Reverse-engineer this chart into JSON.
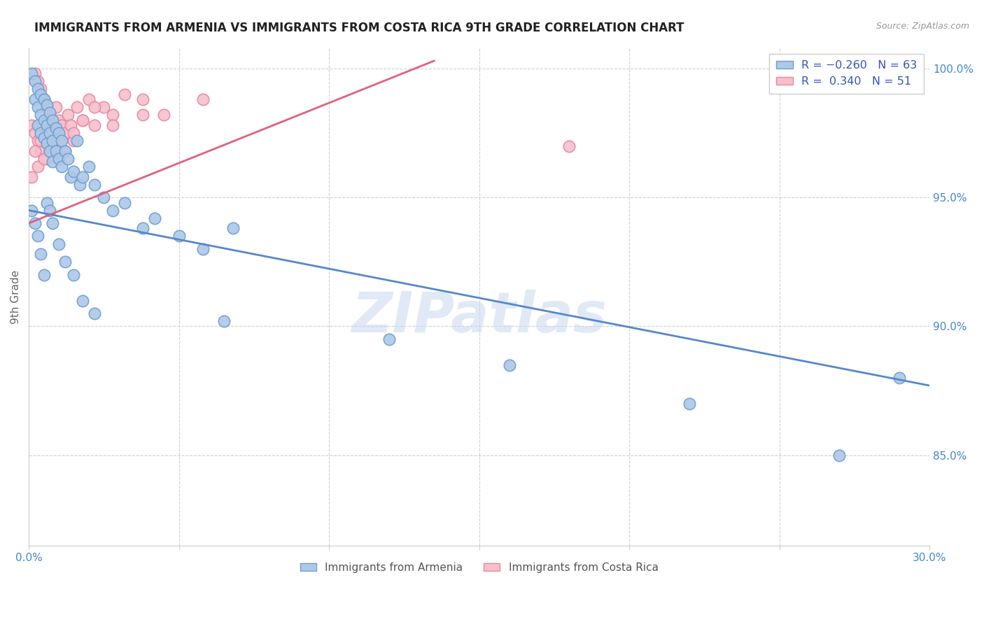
{
  "title": "IMMIGRANTS FROM ARMENIA VS IMMIGRANTS FROM COSTA RICA 9TH GRADE CORRELATION CHART",
  "source": "Source: ZipAtlas.com",
  "ylabel": "9th Grade",
  "ylabel_right_labels": [
    "100.0%",
    "95.0%",
    "90.0%",
    "85.0%"
  ],
  "ylabel_right_values": [
    1.0,
    0.95,
    0.9,
    0.85
  ],
  "xmin": 0.0,
  "xmax": 0.3,
  "ymin": 0.815,
  "ymax": 1.008,
  "armenia_color": "#adc8e8",
  "armenia_edge": "#6fa0d0",
  "costa_rica_color": "#f5c0cc",
  "costa_rica_edge": "#e888a0",
  "armenia_N": 63,
  "costa_rica_N": 51,
  "trend_armenia_color": "#5588cc",
  "trend_costa_rica_color": "#e06080",
  "watermark": "ZIPatlas",
  "legend_label_armenia_bottom": "Immigrants from Armenia",
  "legend_label_costa_rica_bottom": "Immigrants from Costa Rica",
  "arm_trend_x": [
    0.0,
    0.3
  ],
  "arm_trend_y": [
    0.945,
    0.877
  ],
  "cr_trend_x": [
    0.0,
    0.135
  ],
  "cr_trend_y": [
    0.94,
    1.003
  ],
  "arm_x": [
    0.001,
    0.002,
    0.002,
    0.003,
    0.003,
    0.003,
    0.004,
    0.004,
    0.004,
    0.005,
    0.005,
    0.005,
    0.006,
    0.006,
    0.006,
    0.007,
    0.007,
    0.007,
    0.008,
    0.008,
    0.008,
    0.009,
    0.009,
    0.01,
    0.01,
    0.011,
    0.011,
    0.012,
    0.013,
    0.014,
    0.015,
    0.016,
    0.017,
    0.018,
    0.02,
    0.022,
    0.025,
    0.028,
    0.032,
    0.038,
    0.042,
    0.05,
    0.058,
    0.068,
    0.001,
    0.002,
    0.003,
    0.004,
    0.005,
    0.006,
    0.007,
    0.008,
    0.01,
    0.012,
    0.015,
    0.018,
    0.022,
    0.065,
    0.12,
    0.16,
    0.22,
    0.27,
    0.29
  ],
  "arm_y": [
    0.998,
    0.995,
    0.988,
    0.992,
    0.985,
    0.978,
    0.99,
    0.982,
    0.975,
    0.988,
    0.98,
    0.973,
    0.986,
    0.978,
    0.971,
    0.983,
    0.975,
    0.968,
    0.98,
    0.972,
    0.964,
    0.977,
    0.968,
    0.975,
    0.965,
    0.972,
    0.962,
    0.968,
    0.965,
    0.958,
    0.96,
    0.972,
    0.955,
    0.958,
    0.962,
    0.955,
    0.95,
    0.945,
    0.948,
    0.938,
    0.942,
    0.935,
    0.93,
    0.938,
    0.945,
    0.94,
    0.935,
    0.928,
    0.92,
    0.948,
    0.945,
    0.94,
    0.932,
    0.925,
    0.92,
    0.91,
    0.905,
    0.902,
    0.895,
    0.885,
    0.87,
    0.85,
    0.88
  ],
  "cr_x": [
    0.001,
    0.002,
    0.002,
    0.003,
    0.003,
    0.004,
    0.004,
    0.005,
    0.005,
    0.006,
    0.006,
    0.006,
    0.007,
    0.007,
    0.008,
    0.008,
    0.009,
    0.009,
    0.01,
    0.01,
    0.011,
    0.012,
    0.013,
    0.014,
    0.015,
    0.016,
    0.018,
    0.02,
    0.022,
    0.025,
    0.028,
    0.032,
    0.038,
    0.045,
    0.001,
    0.002,
    0.003,
    0.004,
    0.005,
    0.006,
    0.007,
    0.008,
    0.01,
    0.012,
    0.015,
    0.018,
    0.022,
    0.028,
    0.038,
    0.058,
    0.18
  ],
  "cr_y": [
    0.978,
    0.998,
    0.975,
    0.995,
    0.972,
    0.992,
    0.968,
    0.988,
    0.972,
    0.985,
    0.975,
    0.965,
    0.982,
    0.97,
    0.978,
    0.968,
    0.985,
    0.972,
    0.98,
    0.965,
    0.978,
    0.975,
    0.982,
    0.978,
    0.972,
    0.985,
    0.98,
    0.988,
    0.978,
    0.985,
    0.982,
    0.99,
    0.988,
    0.982,
    0.958,
    0.968,
    0.962,
    0.972,
    0.965,
    0.975,
    0.968,
    0.978,
    0.972,
    0.968,
    0.975,
    0.98,
    0.985,
    0.978,
    0.982,
    0.988,
    0.97
  ]
}
